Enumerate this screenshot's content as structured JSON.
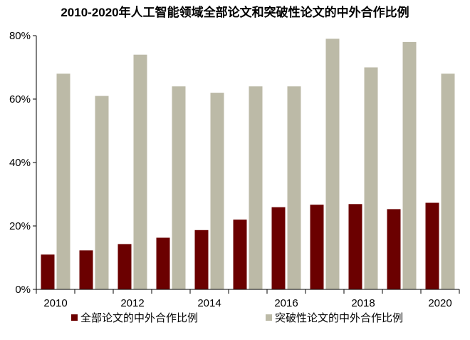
{
  "chart_data": {
    "type": "bar",
    "title": "2010-2020年人工智能领域全部论文和突破性论文的中外合作比例",
    "xlabel": "",
    "ylabel": "",
    "categories": [
      "2010",
      "2011",
      "2012",
      "2013",
      "2014",
      "2015",
      "2016",
      "2017",
      "2018",
      "2019",
      "2020"
    ],
    "x_tick_labels": [
      "2010",
      "2012",
      "2014",
      "2016",
      "2018",
      "2020"
    ],
    "y_ticks": [
      "0%",
      "20%",
      "40%",
      "60%",
      "80%"
    ],
    "ylim": [
      0,
      80
    ],
    "grid": false,
    "legend_position": "bottom",
    "series": [
      {
        "name": "全部论文的中外合作比例",
        "color": "#6b0000",
        "values": [
          11,
          12.3,
          14.3,
          16.3,
          18.7,
          22,
          25.9,
          26.7,
          26.9,
          25.3,
          27.3
        ]
      },
      {
        "name": "突破性论文的中外合作比例",
        "color": "#bcbaa7",
        "values": [
          68,
          61,
          74,
          64,
          62,
          64,
          64,
          79,
          70,
          78,
          68
        ]
      }
    ]
  }
}
